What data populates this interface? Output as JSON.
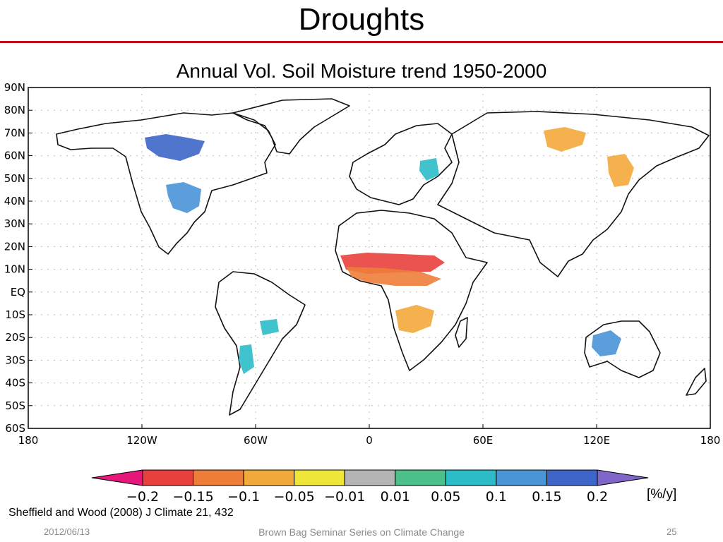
{
  "slide": {
    "title": "Droughts",
    "subtitle": "Annual Vol. Soil Moisture trend 1950-2000",
    "citation": "Sheffield and Wood (2008) J Climate 21, 432",
    "footer": {
      "date": "2012/06/13",
      "series": "Brown Bag Seminar Series on Climate Change",
      "page": "25"
    }
  },
  "map": {
    "lat_ticks": [
      "90N",
      "80N",
      "70N",
      "60N",
      "50N",
      "40N",
      "30N",
      "20N",
      "10N",
      "EQ",
      "10S",
      "20S",
      "30S",
      "40S",
      "50S",
      "60S"
    ],
    "lon_ticks": [
      "180",
      "120W",
      "60W",
      "0",
      "60E",
      "120E",
      "180"
    ],
    "colorbar": {
      "units": "[%/y]",
      "tick_labels": [
        "−0.2",
        "−0.15",
        "−0.1",
        "−0.05",
        "−0.01",
        "0.01",
        "0.05",
        "0.1",
        "0.15",
        "0.2"
      ],
      "colors": [
        "#e8177b",
        "#e8403c",
        "#ee7d3a",
        "#f3a93a",
        "#efe63a",
        "#b4b4b4",
        "#4cbf8a",
        "#2bbcc7",
        "#4a94d8",
        "#3d66c8",
        "#8066c8"
      ]
    },
    "trend_patches": [
      {
        "region": "Sahel",
        "color": "#e8403c"
      },
      {
        "region": "West Africa",
        "color": "#ee7d3a"
      },
      {
        "region": "Southern Africa",
        "color": "#f3a93a"
      },
      {
        "region": "East Siberia",
        "color": "#f3a93a"
      },
      {
        "region": "China",
        "color": "#f3a93a"
      },
      {
        "region": "Canada",
        "color": "#3d66c8"
      },
      {
        "region": "Central US",
        "color": "#4a94d8"
      },
      {
        "region": "Australia",
        "color": "#4a94d8"
      },
      {
        "region": "Amazon",
        "color": "#2bbcc7"
      },
      {
        "region": "Argentina",
        "color": "#2bbcc7"
      },
      {
        "region": "Europe",
        "color": "#2bbcc7"
      }
    ]
  }
}
